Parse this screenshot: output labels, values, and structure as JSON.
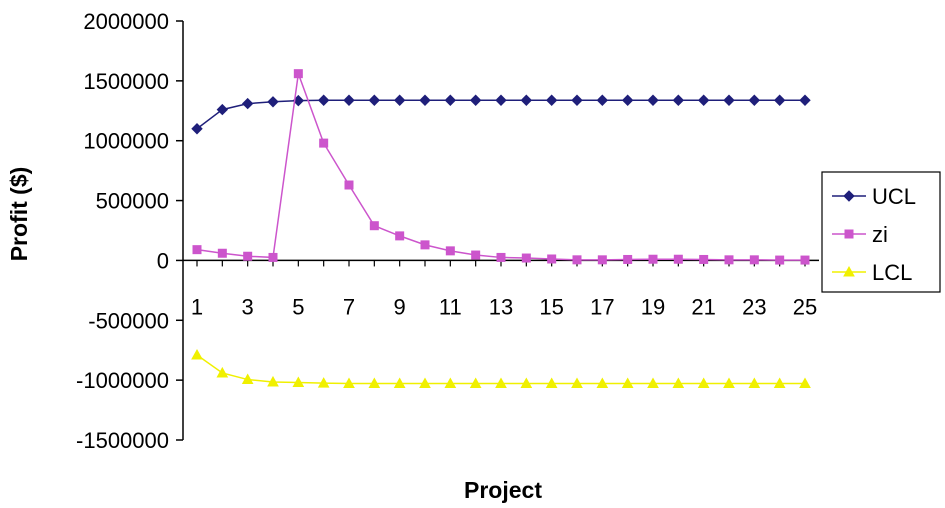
{
  "chart_data": {
    "type": "line",
    "xlabel": "Project",
    "ylabel": "Profit ($)",
    "ylim": [
      -1500000,
      2000000
    ],
    "y_ticks": [
      "2000000",
      "1500000",
      "1000000",
      "500000",
      "0",
      "-500000",
      "-1000000",
      "-1500000"
    ],
    "x_tick_labels": [
      "1",
      "3",
      "5",
      "7",
      "9",
      "11",
      "13",
      "15",
      "17",
      "19",
      "21",
      "23",
      "25"
    ],
    "x": [
      1,
      2,
      3,
      4,
      5,
      6,
      7,
      8,
      9,
      10,
      11,
      12,
      13,
      14,
      15,
      16,
      17,
      18,
      19,
      20,
      21,
      22,
      23,
      24,
      25
    ],
    "grid": false,
    "legend_position": "right",
    "series": [
      {
        "name": "UCL",
        "color": "#1f1f7a",
        "marker": "diamond",
        "values": [
          1100000,
          1260000,
          1310000,
          1325000,
          1335000,
          1338000,
          1338000,
          1338000,
          1338000,
          1338000,
          1338000,
          1338000,
          1338000,
          1338000,
          1338000,
          1338000,
          1338000,
          1338000,
          1338000,
          1338000,
          1338000,
          1338000,
          1338000,
          1338000,
          1338000
        ]
      },
      {
        "name": "zi",
        "color": "#cc55cc",
        "marker": "square",
        "values": [
          90000,
          60000,
          35000,
          25000,
          1560000,
          980000,
          630000,
          290000,
          205000,
          130000,
          80000,
          45000,
          25000,
          20000,
          12000,
          5000,
          5000,
          8000,
          10000,
          10000,
          8000,
          5000,
          5000,
          3000,
          3000
        ]
      },
      {
        "name": "LCL",
        "color": "#f0f000",
        "marker": "triangle",
        "values": [
          -790000,
          -940000,
          -995000,
          -1015000,
          -1020000,
          -1025000,
          -1028000,
          -1028000,
          -1028000,
          -1028000,
          -1028000,
          -1028000,
          -1028000,
          -1028000,
          -1028000,
          -1028000,
          -1028000,
          -1028000,
          -1028000,
          -1028000,
          -1028000,
          -1028000,
          -1028000,
          -1028000,
          -1028000
        ]
      }
    ]
  }
}
